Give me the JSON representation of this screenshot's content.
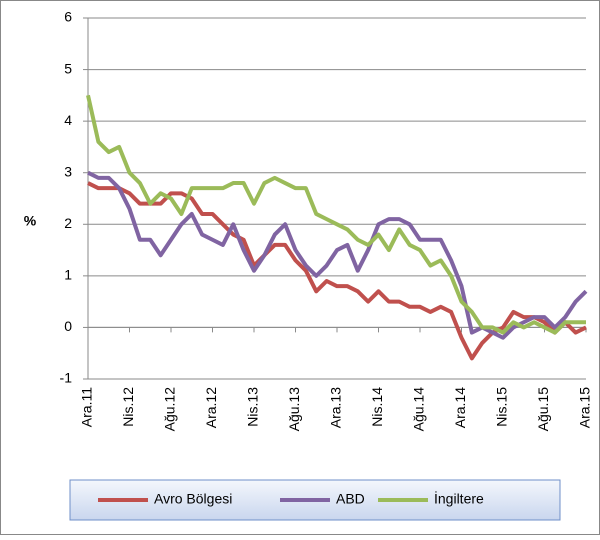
{
  "chart_data": {
    "type": "line",
    "y_label": "%",
    "categories": [
      "Ara.11",
      null,
      null,
      null,
      "Nis.12",
      null,
      null,
      null,
      "Ağu.12",
      null,
      null,
      null,
      "Ara.12",
      null,
      null,
      null,
      "Nis.13",
      null,
      null,
      null,
      "Ağu.13",
      null,
      null,
      null,
      "Ara.13",
      null,
      null,
      null,
      "Nis.14",
      null,
      null,
      null,
      "Ağu.14",
      null,
      null,
      null,
      "Ara.14",
      null,
      null,
      null,
      "Nis.15",
      null,
      null,
      null,
      "Ağu.15",
      null,
      null,
      null,
      "Ara.15"
    ],
    "series": [
      {
        "name": "Avro Bölgesi",
        "color": "#c0504d",
        "values": [
          2.8,
          2.7,
          2.7,
          2.7,
          2.6,
          2.4,
          2.4,
          2.4,
          2.6,
          2.6,
          2.5,
          2.2,
          2.2,
          2.0,
          1.8,
          1.7,
          1.2,
          1.4,
          1.6,
          1.6,
          1.3,
          1.1,
          0.7,
          0.9,
          0.8,
          0.8,
          0.7,
          0.5,
          0.7,
          0.5,
          0.5,
          0.4,
          0.4,
          0.3,
          0.4,
          0.3,
          -0.2,
          -0.6,
          -0.3,
          -0.1,
          0.0,
          0.3,
          0.2,
          0.2,
          0.1,
          -0.1,
          0.1,
          -0.1,
          0.0
        ]
      },
      {
        "name": "ABD",
        "color": "#8064a2",
        "values": [
          3.0,
          2.9,
          2.9,
          2.7,
          2.3,
          1.7,
          1.7,
          1.4,
          1.7,
          2.0,
          2.2,
          1.8,
          1.7,
          1.6,
          2.0,
          1.5,
          1.1,
          1.4,
          1.8,
          2.0,
          1.5,
          1.2,
          1.0,
          1.2,
          1.5,
          1.6,
          1.1,
          1.5,
          2.0,
          2.1,
          2.1,
          2.0,
          1.7,
          1.7,
          1.7,
          1.3,
          0.8,
          -0.1,
          0.0,
          -0.1,
          -0.2,
          0.0,
          0.1,
          0.2,
          0.2,
          0.0,
          0.2,
          0.5,
          0.7
        ]
      },
      {
        "name": "İngiltere",
        "color": "#9bbb59",
        "values": [
          4.5,
          3.6,
          3.4,
          3.5,
          3.0,
          2.8,
          2.4,
          2.6,
          2.5,
          2.2,
          2.7,
          2.7,
          2.7,
          2.7,
          2.8,
          2.8,
          2.4,
          2.8,
          2.9,
          2.8,
          2.7,
          2.7,
          2.2,
          2.1,
          2.0,
          1.9,
          1.7,
          1.6,
          1.8,
          1.5,
          1.9,
          1.6,
          1.5,
          1.2,
          1.3,
          1.0,
          0.5,
          0.3,
          0.0,
          0.0,
          -0.1,
          0.1,
          0.0,
          0.1,
          0.0,
          -0.1,
          0.1,
          0.1,
          0.1
        ]
      }
    ],
    "ylim": [
      -1,
      6
    ],
    "yticks": [
      -1,
      0,
      1,
      2,
      3,
      4,
      5,
      6
    ],
    "grid": true,
    "legend": "bottom"
  }
}
